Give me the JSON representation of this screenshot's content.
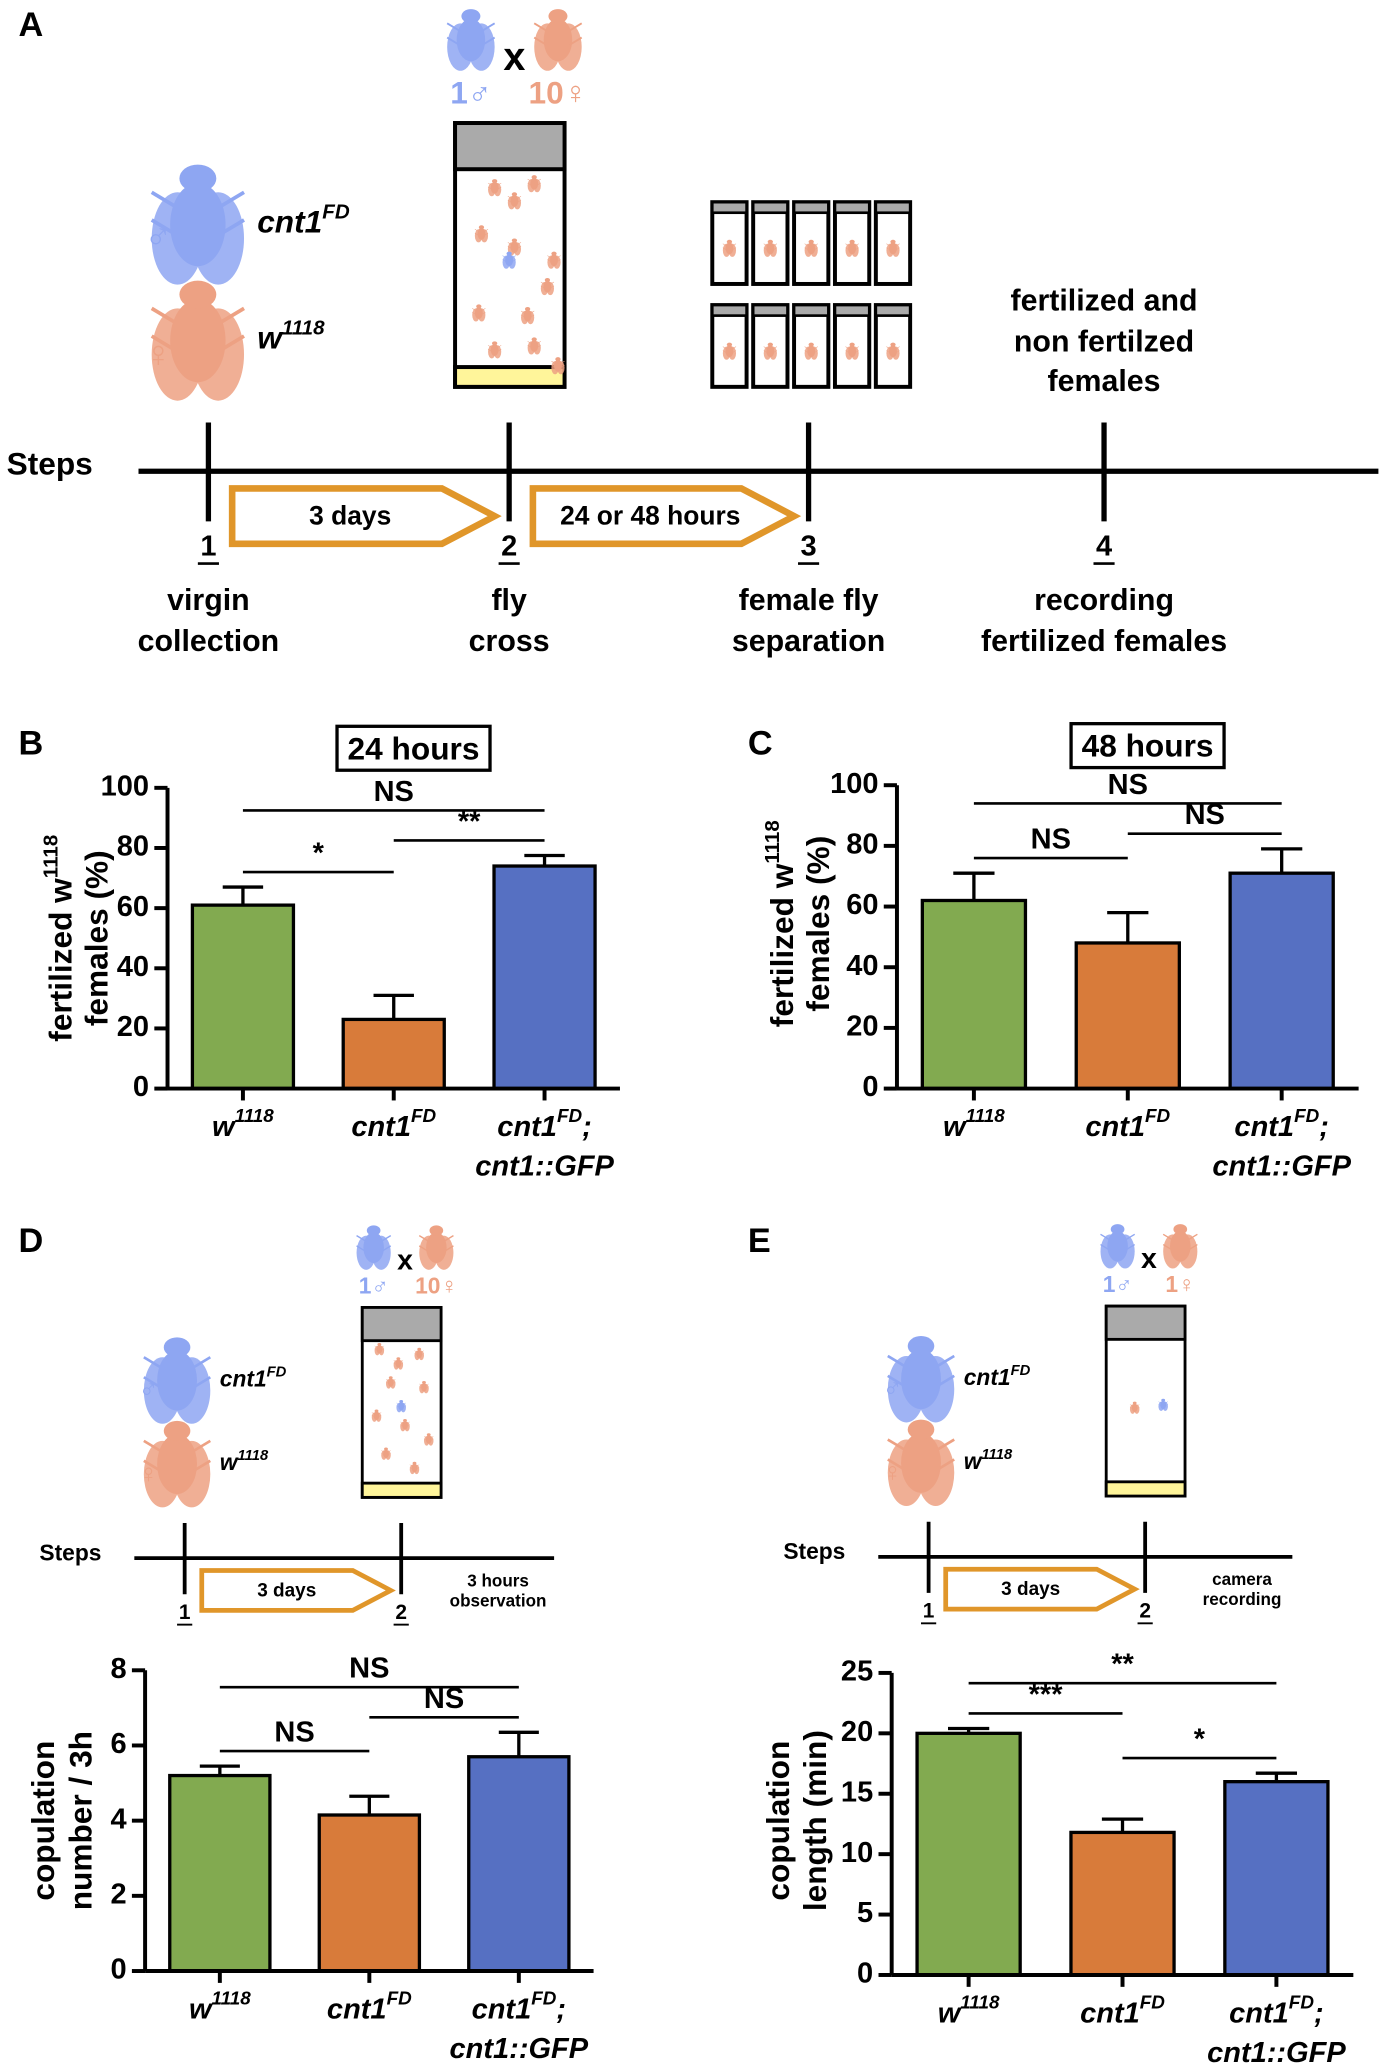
{
  "diagrams": {
    "A": {
      "label": "A",
      "steps_label": "Steps",
      "male": {
        "text": "cnt1",
        "sup": "FD"
      },
      "female": {
        "text": "w",
        "sup": "1118"
      },
      "male_symbol": "♂",
      "female_symbol": "♀",
      "cross": {
        "male_count": "1♂",
        "x": "x",
        "female_count": "10♀"
      },
      "steps": [
        {
          "number": "1",
          "lines": [
            "virgin",
            "collection"
          ]
        },
        {
          "number": "2",
          "lines": [
            "fly",
            "cross"
          ]
        },
        {
          "number": "3",
          "lines": [
            "female fly",
            "separation"
          ]
        },
        {
          "number": "4",
          "lines": [
            "recording",
            "fertilized females"
          ]
        }
      ],
      "durations": [
        "3 days",
        "24 or 48 hours"
      ],
      "note": [
        "fertilized and",
        "non fertilzed",
        "females"
      ]
    },
    "D": {
      "label": "D",
      "steps_label": "Steps",
      "male": {
        "text": "cnt1",
        "sup": "FD"
      },
      "female": {
        "text": "w",
        "sup": "1118"
      },
      "male_symbol": "♂",
      "female_symbol": "♀",
      "cross": {
        "male_count": "1♂",
        "x": "x",
        "female_count": "10♀"
      },
      "steps": [
        {
          "number": "1"
        },
        {
          "number": "2"
        }
      ],
      "durations": [
        "3 days"
      ],
      "note": [
        "3 hours",
        "observation"
      ]
    },
    "E": {
      "label": "E",
      "steps_label": "Steps",
      "male": {
        "text": "cnt1",
        "sup": "FD"
      },
      "female": {
        "text": "w",
        "sup": "1118"
      },
      "male_symbol": "♂",
      "female_symbol": "♀",
      "cross": {
        "male_count": "1♂",
        "x": "x",
        "female_count": "1♀"
      },
      "steps": [
        {
          "number": "1"
        },
        {
          "number": "2"
        }
      ],
      "durations": [
        "3 days"
      ],
      "note": [
        "camera",
        "recording"
      ]
    }
  },
  "chart_data": [
    {
      "type": "bar",
      "panel_label": "B",
      "title": "24 hours",
      "ylabel": {
        "text": "fertilized w",
        "sup": "1118",
        "line2": "females (%)"
      },
      "categories": [
        {
          "text": "w",
          "sup": "1118"
        },
        {
          "text": "cnt1",
          "sup": "FD"
        },
        {
          "text": "cnt1",
          "sup": "FD",
          "after": ";",
          "line2": "cnt1::GFP"
        }
      ],
      "values": [
        61,
        23,
        74
      ],
      "errors": [
        6,
        8,
        3.5
      ],
      "colors": [
        "#82aa50",
        "#d87b3a",
        "#5670c2"
      ],
      "ylim": [
        0,
        100
      ],
      "yticks": [
        0,
        20,
        40,
        60,
        80,
        100
      ],
      "comparisons": [
        {
          "groups": [
            0,
            1
          ],
          "label": "*"
        },
        {
          "groups": [
            1,
            2
          ],
          "label": "**"
        },
        {
          "groups": [
            0,
            2
          ],
          "label": "NS"
        }
      ]
    },
    {
      "type": "bar",
      "panel_label": "C",
      "title": "48 hours",
      "ylabel": {
        "text": "fertilized w",
        "sup": "1118",
        "line2": "females (%)"
      },
      "categories": [
        {
          "text": "w",
          "sup": "1118"
        },
        {
          "text": "cnt1",
          "sup": "FD"
        },
        {
          "text": "cnt1",
          "sup": "FD",
          "after": ";",
          "line2": "cnt1::GFP"
        }
      ],
      "values": [
        62,
        48,
        71
      ],
      "errors": [
        9,
        10,
        8
      ],
      "colors": [
        "#82aa50",
        "#d87b3a",
        "#5670c2"
      ],
      "ylim": [
        0,
        100
      ],
      "yticks": [
        0,
        20,
        40,
        60,
        80,
        100
      ],
      "comparisons": [
        {
          "groups": [
            0,
            1
          ],
          "label": "NS"
        },
        {
          "groups": [
            1,
            2
          ],
          "label": "NS"
        },
        {
          "groups": [
            0,
            2
          ],
          "label": "NS"
        }
      ]
    },
    {
      "type": "bar",
      "panel_label": null,
      "ylabel": {
        "text": "copulation",
        "line2": "number / 3h"
      },
      "categories": [
        {
          "text": "w",
          "sup": "1118"
        },
        {
          "text": "cnt1",
          "sup": "FD"
        },
        {
          "text": "cnt1",
          "sup": "FD",
          "after": ";",
          "line2": "cnt1::GFP"
        }
      ],
      "values": [
        5.2,
        4.15,
        5.7
      ],
      "errors": [
        0.25,
        0.5,
        0.65
      ],
      "colors": [
        "#82aa50",
        "#d87b3a",
        "#5670c2"
      ],
      "ylim": [
        0,
        8
      ],
      "yticks": [
        0,
        2,
        4,
        6,
        8
      ],
      "comparisons": [
        {
          "groups": [
            0,
            1
          ],
          "label": "NS"
        },
        {
          "groups": [
            1,
            2
          ],
          "label": "NS"
        },
        {
          "groups": [
            0,
            2
          ],
          "label": "NS"
        }
      ]
    },
    {
      "type": "bar",
      "panel_label": null,
      "ylabel": {
        "text": "copulation",
        "line2": "length (min)"
      },
      "categories": [
        {
          "text": "w",
          "sup": "1118"
        },
        {
          "text": "cnt1",
          "sup": "FD"
        },
        {
          "text": "cnt1",
          "sup": "FD",
          "after": ";",
          "line2": "cnt1::GFP"
        }
      ],
      "values": [
        20,
        11.8,
        16
      ],
      "errors": [
        0.4,
        1.1,
        0.7
      ],
      "colors": [
        "#82aa50",
        "#d87b3a",
        "#5670c2"
      ],
      "ylim": [
        0,
        25
      ],
      "yticks": [
        0,
        5,
        10,
        15,
        20,
        25
      ],
      "comparisons": [
        {
          "groups": [
            0,
            1
          ],
          "label": "***"
        },
        {
          "groups": [
            1,
            2
          ],
          "label": "*"
        },
        {
          "groups": [
            0,
            2
          ],
          "label": "**"
        }
      ]
    }
  ]
}
